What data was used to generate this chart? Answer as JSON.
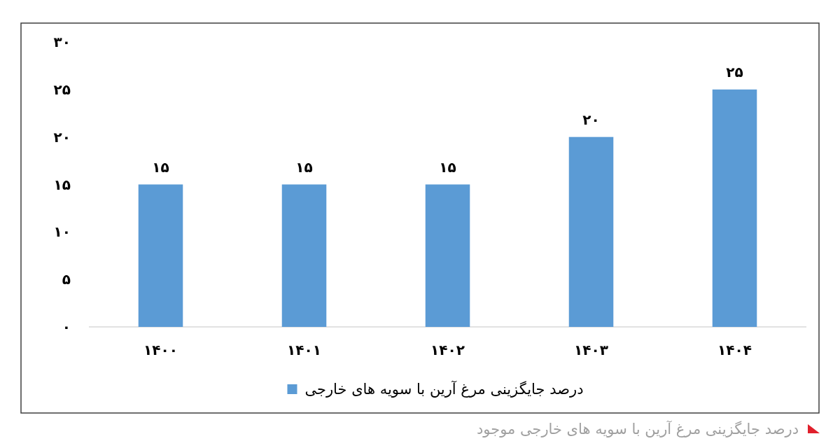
{
  "chart_data": {
    "type": "bar",
    "categories": [
      "۱۴۰۰",
      "۱۴۰۱",
      "۱۴۰۲",
      "۱۴۰۳",
      "۱۴۰۴"
    ],
    "series": [
      {
        "name": "درصد جایگزینی مرغ آرین با سویه های خارجی",
        "color": "#5b9bd5",
        "values": [
          15,
          15,
          15,
          20,
          25
        ],
        "value_labels": [
          "۱۵",
          "۱۵",
          "۱۵",
          "۲۰",
          "۲۵"
        ]
      }
    ],
    "ylim": [
      0,
      30
    ],
    "yticks": [
      {
        "value": 0,
        "label": "۰"
      },
      {
        "value": 5,
        "label": "۵"
      },
      {
        "value": 10,
        "label": "۱۰"
      },
      {
        "value": 15,
        "label": "۱۵"
      },
      {
        "value": 20,
        "label": "۲۰"
      },
      {
        "value": 25,
        "label": "۲۵"
      },
      {
        "value": 30,
        "label": "۳۰"
      }
    ],
    "legend": "bottom",
    "annotations": [
      "درصد جایگزینی مرغ آرین با سویه های خارجی موجود"
    ]
  }
}
